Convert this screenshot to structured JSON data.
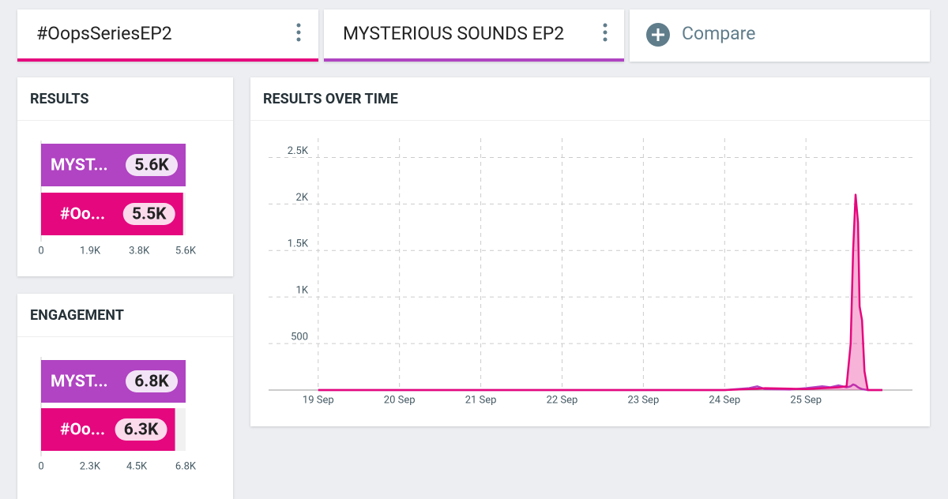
{
  "tabs": [
    {
      "label": "#OopsSeriesEP2",
      "color": "#e5077e"
    },
    {
      "label": "MYSTERIOUS SOUNDS EP2",
      "color": "#b044c2"
    }
  ],
  "compare": "Compare",
  "chart_data": [
    {
      "type": "bar",
      "title": "RESULTS",
      "categories": [
        "MYST...",
        "#Oo..."
      ],
      "values": [
        5600,
        5500
      ],
      "value_labels": [
        "5.6K",
        "5.5K"
      ],
      "colors": [
        "#b044c2",
        "#e5077e"
      ],
      "xlim": [
        0,
        5600
      ],
      "xticks": [
        0,
        {
          "value": 1900,
          "label": "1.9K"
        },
        {
          "value": 3800,
          "label": "3.8K"
        },
        {
          "value": 5600,
          "label": "5.6K"
        }
      ]
    },
    {
      "type": "bar",
      "title": "ENGAGEMENT",
      "categories": [
        "MYST...",
        "#Oo..."
      ],
      "values": [
        6800,
        6300
      ],
      "value_labels": [
        "6.8K",
        "6.3K"
      ],
      "colors": [
        "#b044c2",
        "#e5077e"
      ],
      "xlim": [
        0,
        6800
      ],
      "xticks": [
        0,
        {
          "value": 2300,
          "label": "2.3K"
        },
        {
          "value": 4500,
          "label": "4.5K"
        },
        {
          "value": 6800,
          "label": "6.8K"
        }
      ]
    },
    {
      "type": "line",
      "title": "RESULTS OVER TIME",
      "x": [
        19,
        24,
        24.3,
        24.4,
        24.5,
        24.8,
        25,
        25.2,
        25.3,
        25.4,
        25.5,
        25.55,
        25.58,
        25.61,
        25.64,
        25.66,
        25.69,
        25.72,
        25.76,
        25.94
      ],
      "series": [
        {
          "color": "#b044c2",
          "fill": false,
          "values": [
            0,
            0,
            20,
            40,
            10,
            5,
            20,
            40,
            30,
            50,
            30,
            40,
            60,
            50,
            30,
            20,
            10,
            5,
            0,
            0
          ]
        },
        {
          "color": "#e5077e",
          "fill": true,
          "values": [
            0,
            0,
            10,
            15,
            20,
            15,
            10,
            20,
            25,
            30,
            40,
            500,
            1500,
            2100,
            1800,
            900,
            750,
            200,
            0,
            0
          ]
        }
      ],
      "xlim": [
        18.39,
        26.31
      ],
      "ylim": [
        0,
        2750
      ],
      "xticks": [
        {
          "value": 19,
          "label": "19 Sep"
        },
        {
          "value": 20,
          "label": "20 Sep"
        },
        {
          "value": 21,
          "label": "21 Sep"
        },
        {
          "value": 22,
          "label": "22 Sep"
        },
        {
          "value": 23,
          "label": "23 Sep"
        },
        {
          "value": 24,
          "label": "24 Sep"
        },
        {
          "value": 25,
          "label": "25 Sep"
        }
      ],
      "yticks": [
        500,
        {
          "value": 1000,
          "label": "1K"
        },
        {
          "value": 1500,
          "label": "1.5K"
        },
        {
          "value": 2000,
          "label": "2K"
        },
        {
          "value": 2500,
          "label": "2.5K"
        }
      ],
      "grid": true
    }
  ]
}
